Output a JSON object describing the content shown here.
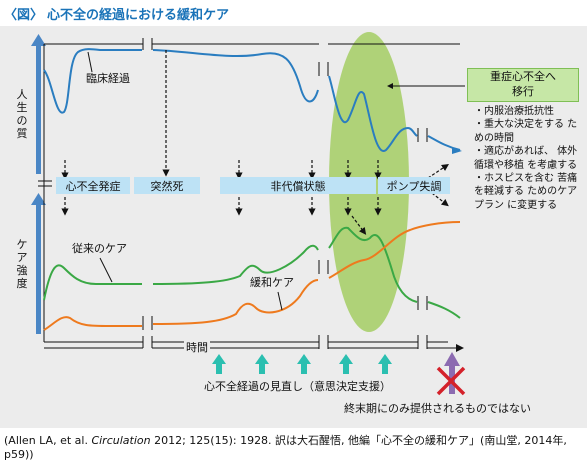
{
  "title": {
    "bracket": "〈図〉",
    "text": "心不全の経過における緩和ケア"
  },
  "axis": {
    "top_y": "人生の質",
    "bottom_y": "ケア強度",
    "x": "時間"
  },
  "curves": {
    "clinical": "臨床経過",
    "conventional": "従来のケア",
    "palliative": "緩和ケア"
  },
  "stages": [
    "心不全発症",
    "突然死",
    "非代償状態",
    "ポンプ失調"
  ],
  "side_box": {
    "line1": "重症心不全へ",
    "line2": "移行"
  },
  "side_items": [
    "・内服治療抵抗性",
    "・重大な決定をする ための時間",
    "・適応があれば、 体外循環や移植 を考慮する",
    "・ホスピスを含む 苦痛を軽減する ためのケアプラン に変更する"
  ],
  "notes": {
    "review": "心不全経過の見直し（意思決定支援）",
    "not_only_end": "終末期にのみ提供されるものではない"
  },
  "caption": {
    "before": "(Allen LA, et al. ",
    "journal": "Circulation",
    "after": " 2012; 125(15): 1928. 訳は大石醒悟,  他編「心不全の緩和ケア」(南山堂, 2014年, p59))"
  },
  "colors": {
    "title": "#1a73b8",
    "blue_curve": "#2a7dc0",
    "green_curve": "#3aa845",
    "orange_curve": "#ee7a1e",
    "stage_band": "#bde2f5",
    "ellipse": "#a9cf6c",
    "teal_arrow": "#2bbfb0",
    "purple_arrow": "#8c6bb1",
    "red_cross": "#d4212a"
  }
}
